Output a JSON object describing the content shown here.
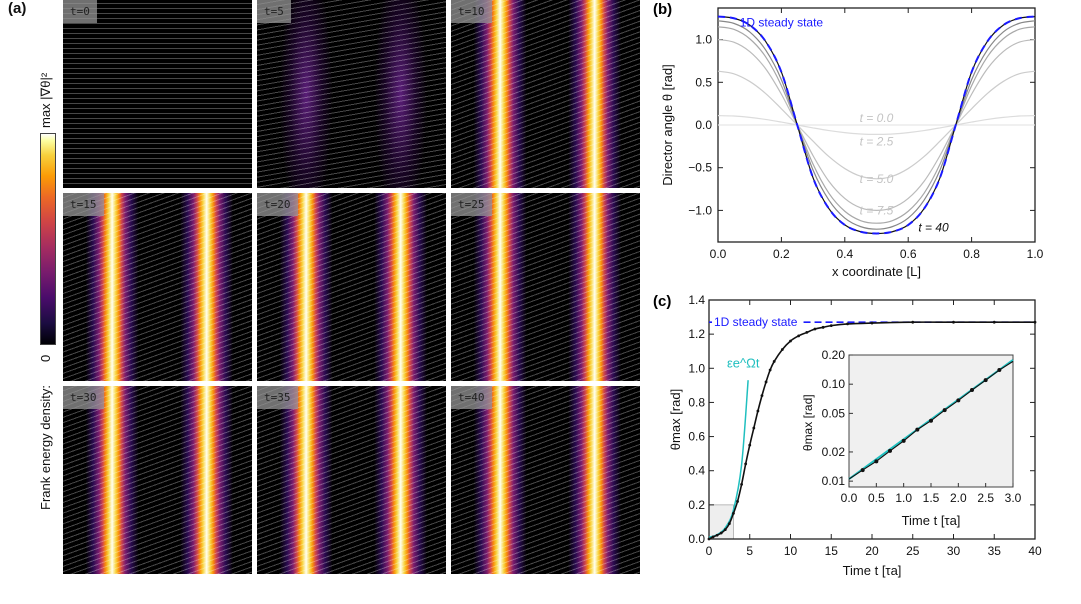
{
  "panel_a": {
    "label": "(a)",
    "colorbar": {
      "max_label": "max |∇θ|²",
      "title": "Frank energy density:",
      "min_label": "0"
    },
    "tiles": [
      {
        "label": "t=0",
        "intensity": 0
      },
      {
        "label": "t=5",
        "intensity": 0.35
      },
      {
        "label": "t=10",
        "intensity": 0.9
      },
      {
        "label": "t=15",
        "intensity": 1
      },
      {
        "label": "t=20",
        "intensity": 1
      },
      {
        "label": "t=25",
        "intensity": 1
      },
      {
        "label": "t=30",
        "intensity": 1
      },
      {
        "label": "t=35",
        "intensity": 1
      },
      {
        "label": "t=40",
        "intensity": 1
      }
    ]
  },
  "chart_data": [
    {
      "panel": "(b)",
      "type": "line",
      "xlabel": "x coordinate [L]",
      "ylabel": "Director angle θ [rad]",
      "xlim": [
        0,
        1
      ],
      "ylim": [
        -1.37,
        1.37
      ],
      "xticks": [
        "0.0",
        "0.2",
        "0.4",
        "0.6",
        "0.8",
        "1.0"
      ],
      "yticks": [
        "-1.0",
        "-0.5",
        "0.0",
        "0.5",
        "1.0"
      ],
      "x": [
        0,
        0.05,
        0.1,
        0.15,
        0.2,
        0.25,
        0.3,
        0.35,
        0.4,
        0.45,
        0.5,
        0.55,
        0.6,
        0.65,
        0.7,
        0.75,
        0.8,
        0.85,
        0.9,
        0.95,
        1.0
      ],
      "series": [
        {
          "name": "t = 0.0",
          "color": "#e8e8e8",
          "values": [
            0,
            0,
            0,
            0,
            0,
            0,
            0,
            0,
            0,
            0,
            0,
            0,
            0,
            0,
            0,
            0,
            0,
            0,
            0,
            0,
            0
          ]
        },
        {
          "name": "t = 2.5",
          "color": "#dcdcdc",
          "values": [
            0.11,
            0.105,
            0.089,
            0.065,
            0.034,
            0,
            -0.034,
            -0.065,
            -0.089,
            -0.105,
            -0.11,
            -0.105,
            -0.089,
            -0.065,
            -0.034,
            0,
            0.034,
            0.065,
            0.089,
            0.105,
            0.11
          ]
        },
        {
          "name": "t = 5.0",
          "color": "#cccccc",
          "values": [
            0.63,
            0.6,
            0.51,
            0.37,
            0.19,
            0,
            -0.19,
            -0.37,
            -0.51,
            -0.6,
            -0.63,
            -0.6,
            -0.51,
            -0.37,
            -0.19,
            0,
            0.19,
            0.37,
            0.51,
            0.6,
            0.63
          ]
        },
        {
          "name": "t = 7.5",
          "color": "#bbbbbb",
          "values": [
            1.0,
            0.97,
            0.86,
            0.66,
            0.36,
            0,
            -0.36,
            -0.66,
            -0.86,
            -0.97,
            -1.0,
            -0.97,
            -0.86,
            -0.66,
            -0.36,
            0,
            0.36,
            0.66,
            0.86,
            0.97,
            1.0
          ]
        },
        {
          "name": "",
          "color": "#a8a8a8",
          "values": [
            1.15,
            1.12,
            1.01,
            0.8,
            0.46,
            0,
            -0.46,
            -0.8,
            -1.01,
            -1.12,
            -1.15,
            -1.12,
            -1.01,
            -0.8,
            -0.46,
            0,
            0.46,
            0.8,
            1.01,
            1.12,
            1.15
          ]
        },
        {
          "name": "",
          "color": "#888888",
          "values": [
            1.22,
            1.19,
            1.09,
            0.88,
            0.53,
            0,
            -0.53,
            -0.88,
            -1.09,
            -1.19,
            -1.22,
            -1.19,
            -1.09,
            -0.88,
            -0.53,
            0,
            0.53,
            0.88,
            1.09,
            1.19,
            1.22
          ]
        },
        {
          "name": "t = 40",
          "color": "#111111",
          "values": [
            1.27,
            1.25,
            1.17,
            0.98,
            0.62,
            0,
            -0.62,
            -0.98,
            -1.17,
            -1.25,
            -1.27,
            -1.25,
            -1.17,
            -0.98,
            -0.62,
            0,
            0.62,
            0.98,
            1.17,
            1.25,
            1.27
          ]
        },
        {
          "name": "1D steady state",
          "color": "#1a1aff",
          "dashed": true,
          "values": [
            1.27,
            1.25,
            1.17,
            0.98,
            0.62,
            0,
            -0.62,
            -0.98,
            -1.17,
            -1.25,
            -1.27,
            -1.25,
            -1.17,
            -0.98,
            -0.62,
            0,
            0.62,
            0.98,
            1.17,
            1.25,
            1.27
          ]
        }
      ]
    },
    {
      "panel": "(c)",
      "type": "line",
      "xlabel": "Time t [τa]",
      "ylabel": "θmax [rad]",
      "xlim": [
        0,
        40
      ],
      "ylim": [
        0,
        1.4
      ],
      "xticks": [
        "0",
        "5",
        "10",
        "15",
        "20",
        "25",
        "30",
        "35",
        "40"
      ],
      "yticks": [
        "0.0",
        "0.2",
        "0.4",
        "0.6",
        "0.8",
        "1.0",
        "1.2",
        "1.4"
      ],
      "steady_state": {
        "label": "1D steady state",
        "value": 1.27,
        "color": "#1a1aff"
      },
      "fit": {
        "label": "εe^Ωt",
        "color": "#1fbfbf",
        "t": [
          0,
          1,
          2,
          3,
          4,
          4.8
        ],
        "values": [
          0.01,
          0.0257,
          0.066,
          0.17,
          0.435,
          0.93
        ]
      },
      "inset_region": {
        "t": [
          0,
          3
        ],
        "values": [
          0,
          0.2
        ]
      },
      "series": [
        {
          "color": "#111111",
          "t": [
            0,
            0.5,
            1,
            1.5,
            2,
            2.5,
            3,
            3.5,
            4,
            4.5,
            5,
            5.5,
            6,
            6.5,
            7,
            7.5,
            8,
            9,
            10,
            11,
            12,
            13,
            14,
            15,
            17,
            20,
            25,
            30,
            35,
            40
          ],
          "values": [
            0,
            0.012,
            0.022,
            0.035,
            0.055,
            0.09,
            0.15,
            0.22,
            0.32,
            0.44,
            0.55,
            0.65,
            0.75,
            0.84,
            0.92,
            0.99,
            1.04,
            1.11,
            1.16,
            1.19,
            1.21,
            1.23,
            1.24,
            1.25,
            1.26,
            1.265,
            1.27,
            1.27,
            1.27,
            1.27
          ]
        }
      ],
      "inset": {
        "type": "line",
        "yscale": "log",
        "xlabel": "Time t [τa]",
        "ylabel": "θmax [rad]",
        "xlim": [
          0,
          3
        ],
        "ylim": [
          0.0087,
          0.2
        ],
        "xticks": [
          "0.0",
          "0.5",
          "1.0",
          "1.5",
          "2.0",
          "2.5",
          "3.0"
        ],
        "yticks": [
          "0.01",
          "0.02",
          "0.05",
          "0.10",
          "0.20"
        ],
        "fit": {
          "color": "#1fbfbf",
          "t": [
            0,
            3
          ],
          "values": [
            0.0105,
            0.178
          ]
        },
        "series": [
          {
            "color": "#111111",
            "t": [
              0,
              0.25,
              0.5,
              0.75,
              1,
              1.25,
              1.5,
              1.75,
              2,
              2.25,
              2.5,
              2.75,
              3
            ],
            "values": [
              0.0105,
              0.013,
              0.016,
              0.0205,
              0.026,
              0.034,
              0.042,
              0.054,
              0.068,
              0.087,
              0.11,
              0.14,
              0.172
            ]
          }
        ]
      }
    }
  ]
}
